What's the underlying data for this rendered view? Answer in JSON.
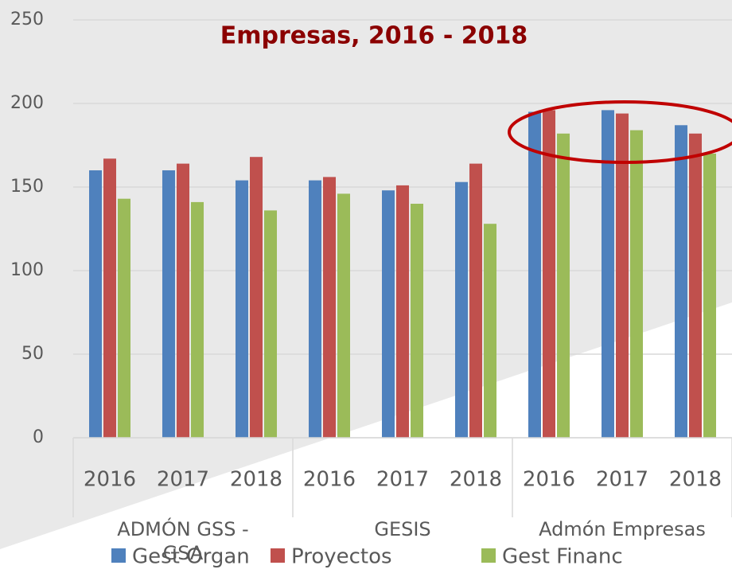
{
  "chart_data": {
    "type": "bar",
    "title": "Empresas, 2016 - 2018",
    "categories": [
      "2016",
      "2017",
      "2018",
      "2016",
      "2017",
      "2018",
      "2016",
      "2017",
      "2018"
    ],
    "category_groups": [
      "ADMÓN GSS - GSA",
      "GESIS",
      "Admón Empresas"
    ],
    "series": [
      {
        "name": "Gest Organ",
        "color": "#4f81bd",
        "values": [
          160,
          160,
          154,
          154,
          148,
          153,
          195,
          196,
          187
        ]
      },
      {
        "name": "Proyectos",
        "color": "#c0504d",
        "values": [
          167,
          164,
          168,
          156,
          151,
          164,
          196,
          194,
          182
        ]
      },
      {
        "name": "Gest Financ",
        "color": "#9bbb59",
        "values": [
          143,
          141,
          136,
          146,
          140,
          128,
          182,
          184,
          170
        ]
      }
    ],
    "ylim": [
      0,
      250
    ],
    "yticks": [
      0,
      50,
      100,
      150,
      200,
      250
    ],
    "grid": true,
    "legend": "bottom"
  }
}
